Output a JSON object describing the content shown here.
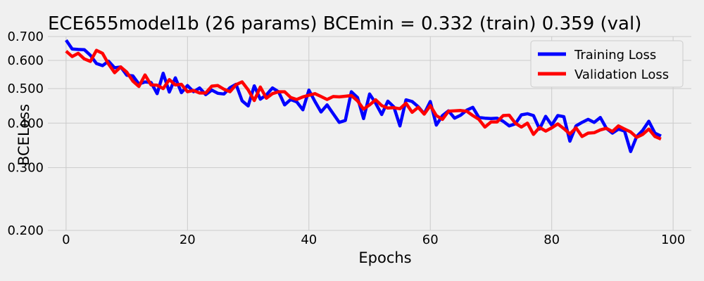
{
  "chart_data": {
    "type": "line",
    "title": "ECE655model1b (26 params)     BCEmin = 0.332 (train)   0.359 (val)",
    "xlabel": "Epochs",
    "ylabel": "BCELoss",
    "xlim": [
      -3,
      103
    ],
    "ylim": [
      0.2,
      0.7
    ],
    "yscale": "log",
    "xticks": [
      0,
      20,
      40,
      60,
      80,
      100
    ],
    "yticks": [
      "0.200",
      "0.300",
      "0.400",
      "0.500",
      "0.600",
      "0.700"
    ],
    "grid": true,
    "legend_position": "top-right",
    "series": [
      {
        "name": "Training Loss",
        "color": "#0000ff",
        "values": [
          0.684,
          0.646,
          0.644,
          0.643,
          0.62,
          0.588,
          0.58,
          0.597,
          0.572,
          0.575,
          0.545,
          0.543,
          0.515,
          0.522,
          0.52,
          0.484,
          0.552,
          0.489,
          0.536,
          0.487,
          0.51,
          0.49,
          0.502,
          0.481,
          0.495,
          0.485,
          0.483,
          0.503,
          0.514,
          0.462,
          0.447,
          0.509,
          0.467,
          0.48,
          0.502,
          0.49,
          0.45,
          0.466,
          0.459,
          0.436,
          0.495,
          0.46,
          0.43,
          0.45,
          0.425,
          0.402,
          0.407,
          0.49,
          0.472,
          0.412,
          0.483,
          0.455,
          0.423,
          0.461,
          0.444,
          0.393,
          0.465,
          0.46,
          0.445,
          0.425,
          0.46,
          0.395,
          0.42,
          0.433,
          0.413,
          0.421,
          0.435,
          0.443,
          0.415,
          0.413,
          0.412,
          0.413,
          0.405,
          0.393,
          0.398,
          0.422,
          0.425,
          0.42,
          0.385,
          0.418,
          0.395,
          0.42,
          0.417,
          0.356,
          0.393,
          0.402,
          0.41,
          0.402,
          0.415,
          0.387,
          0.375,
          0.385,
          0.38,
          0.333,
          0.367,
          0.382,
          0.405,
          0.375,
          0.368
        ]
      },
      {
        "name": "Validation Loss",
        "color": "#ff0000",
        "values": [
          0.637,
          0.615,
          0.628,
          0.606,
          0.596,
          0.64,
          0.628,
          0.586,
          0.554,
          0.575,
          0.556,
          0.525,
          0.507,
          0.546,
          0.512,
          0.511,
          0.5,
          0.53,
          0.512,
          0.514,
          0.49,
          0.494,
          0.486,
          0.486,
          0.508,
          0.51,
          0.498,
          0.49,
          0.513,
          0.522,
          0.496,
          0.463,
          0.505,
          0.47,
          0.484,
          0.49,
          0.49,
          0.472,
          0.466,
          0.474,
          0.479,
          0.484,
          0.475,
          0.466,
          0.475,
          0.474,
          0.476,
          0.478,
          0.462,
          0.438,
          0.45,
          0.465,
          0.448,
          0.441,
          0.442,
          0.439,
          0.455,
          0.429,
          0.443,
          0.424,
          0.448,
          0.42,
          0.41,
          0.432,
          0.433,
          0.434,
          0.432,
          0.42,
          0.41,
          0.39,
          0.403,
          0.403,
          0.42,
          0.421,
          0.4,
          0.39,
          0.4,
          0.372,
          0.389,
          0.38,
          0.388,
          0.398,
          0.386,
          0.373,
          0.388,
          0.367,
          0.375,
          0.376,
          0.383,
          0.387,
          0.379,
          0.393,
          0.385,
          0.378,
          0.365,
          0.372,
          0.385,
          0.367,
          0.361
        ]
      }
    ]
  }
}
